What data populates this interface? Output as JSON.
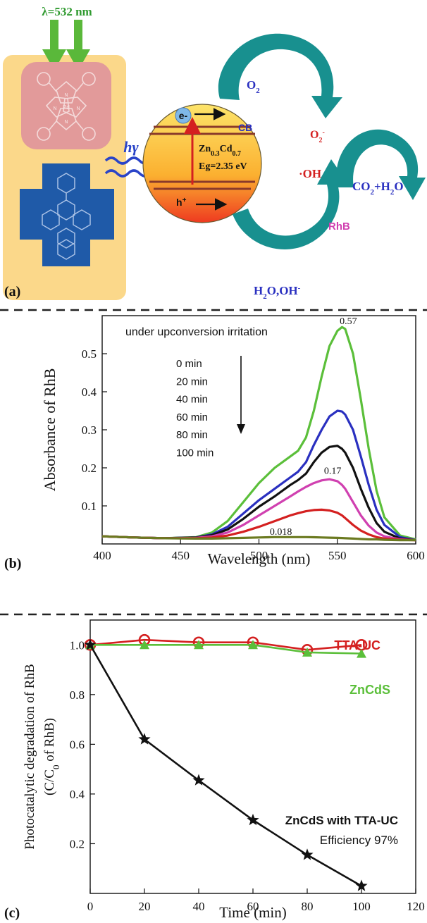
{
  "colors": {
    "panel_bg": "#fbd88a",
    "porphyrin": "#e29a9a",
    "dpa": "#1f5aa8",
    "teal_arrow": "#18908f",
    "green_arrow": "#5ab83a",
    "wave": "#2a44c8",
    "red": "#d42020",
    "blue": "#2a30c0",
    "pink": "#d040b0",
    "green": "#5bbf3a",
    "black": "#111111",
    "olive": "#6b7a20",
    "dpa_green": "#3a7a30"
  },
  "panel_a": {
    "label": "(a)",
    "wavelength_label": "λ=532 nm",
    "porphyrin_metal": "Pd",
    "porphyrin_n": "N",
    "light_label": "hγ",
    "electron": "e-",
    "hole": "h",
    "hole_sup": "+",
    "cb_label": "CB",
    "semiconductor_formula": {
      "zn": "Zn",
      "zn_sub": "0.3",
      "cd": "Cd",
      "cd_sub": "0.7"
    },
    "band_gap": "Eg=2.35 eV",
    "o2": {
      "base": "O",
      "sub": "2"
    },
    "superoxide": {
      "base": "O",
      "sub": "2",
      "sup": "-"
    },
    "hydroxyl": "·OH",
    "products": {
      "co": "CO",
      "sub": "2",
      "rest": "+H",
      "sub2": "2",
      "o": "O"
    },
    "dye": "RhB",
    "water": {
      "h": "H",
      "sub": "2",
      "rest": "O,OH",
      "sup": "-"
    }
  },
  "chart_data": [
    {
      "panel": "b",
      "type": "line",
      "panel_label": "(b)",
      "xlabel": "Wavelength (nm)",
      "ylabel": "Absorbance of RhB",
      "xlim": [
        400,
        600
      ],
      "ylim": [
        0,
        0.6
      ],
      "xticks": [
        400,
        450,
        500,
        550,
        600
      ],
      "yticks": [
        0.1,
        0.2,
        0.3,
        0.4,
        0.5
      ],
      "legend_title": "under upconversion irritation",
      "legend_entries": [
        "0 min",
        "20 min",
        "40 min",
        "60 min",
        "80 min",
        "100 min"
      ],
      "x": [
        400,
        420,
        440,
        460,
        470,
        480,
        490,
        500,
        510,
        520,
        525,
        530,
        535,
        540,
        545,
        550,
        553,
        555,
        560,
        565,
        570,
        575,
        580,
        590,
        600
      ],
      "series": [
        {
          "color": "#5bbf3a",
          "values": [
            0.02,
            0.017,
            0.015,
            0.018,
            0.03,
            0.06,
            0.11,
            0.16,
            0.2,
            0.23,
            0.245,
            0.28,
            0.35,
            0.44,
            0.52,
            0.56,
            0.57,
            0.565,
            0.5,
            0.38,
            0.25,
            0.14,
            0.07,
            0.022,
            0.012
          ]
        },
        {
          "color": "#2a30c0",
          "values": [
            0.02,
            0.017,
            0.015,
            0.017,
            0.025,
            0.045,
            0.08,
            0.115,
            0.145,
            0.175,
            0.19,
            0.215,
            0.26,
            0.3,
            0.335,
            0.35,
            0.348,
            0.34,
            0.3,
            0.23,
            0.155,
            0.09,
            0.05,
            0.018,
            0.01
          ]
        },
        {
          "color": "#111111",
          "values": [
            0.02,
            0.017,
            0.015,
            0.017,
            0.023,
            0.038,
            0.066,
            0.098,
            0.125,
            0.155,
            0.168,
            0.185,
            0.215,
            0.24,
            0.255,
            0.258,
            0.25,
            0.24,
            0.2,
            0.145,
            0.095,
            0.055,
            0.032,
            0.014,
            0.01
          ]
        },
        {
          "color": "#d040b0",
          "values": [
            0.02,
            0.017,
            0.015,
            0.016,
            0.02,
            0.03,
            0.05,
            0.075,
            0.1,
            0.125,
            0.138,
            0.15,
            0.16,
            0.167,
            0.17,
            0.165,
            0.155,
            0.145,
            0.11,
            0.075,
            0.048,
            0.03,
            0.02,
            0.012,
            0.01
          ]
        },
        {
          "color": "#d42020",
          "values": [
            0.02,
            0.017,
            0.015,
            0.015,
            0.017,
            0.022,
            0.032,
            0.045,
            0.06,
            0.075,
            0.081,
            0.086,
            0.089,
            0.09,
            0.088,
            0.082,
            0.075,
            0.068,
            0.05,
            0.035,
            0.025,
            0.018,
            0.014,
            0.011,
            0.01
          ]
        },
        {
          "color": "#6b7a20",
          "values": [
            0.02,
            0.017,
            0.015,
            0.014,
            0.014,
            0.015,
            0.016,
            0.017,
            0.018,
            0.018,
            0.018,
            0.018,
            0.0175,
            0.017,
            0.0165,
            0.016,
            0.0155,
            0.015,
            0.014,
            0.013,
            0.012,
            0.012,
            0.011,
            0.01,
            0.01
          ]
        }
      ],
      "annotations": [
        {
          "text": "0.57",
          "x": 557,
          "y": 0.578
        },
        {
          "text": "0.17",
          "x": 547,
          "y": 0.184
        },
        {
          "text": "0.018",
          "x": 514,
          "y": 0.024
        }
      ]
    },
    {
      "panel": "c",
      "type": "line",
      "panel_label": "(c)",
      "xlabel": "Time (min)",
      "ylabel_line1": "Photocatalytic degradation of RhB",
      "ylabel_line2": {
        "pre": "(C/C",
        "sub": "0",
        "post": " of RhB)"
      },
      "xlim": [
        0,
        120
      ],
      "ylim": [
        0,
        1.1
      ],
      "xticks": [
        0,
        20,
        40,
        60,
        80,
        100,
        120
      ],
      "yticks": [
        0.2,
        0.4,
        0.6,
        0.8,
        1.0
      ],
      "ytick_labels": [
        "0.2",
        "0.4",
        "0.6",
        "0.8",
        "1.0"
      ],
      "x": [
        0,
        20,
        40,
        60,
        80,
        100
      ],
      "series": [
        {
          "name": "TTA-UC",
          "color": "#d42020",
          "marker": "circle",
          "values": [
            1.0,
            1.02,
            1.01,
            1.01,
            0.98,
            1.0
          ]
        },
        {
          "name": "ZnCdS",
          "color": "#5bbf3a",
          "marker": "triangle",
          "values": [
            1.0,
            1.0,
            1.0,
            1.0,
            0.97,
            0.965
          ]
        },
        {
          "name": "ZnCdS with TTA-UC",
          "color": "#111111",
          "marker": "star",
          "values": [
            1.0,
            0.62,
            0.455,
            0.295,
            0.155,
            0.03
          ]
        }
      ],
      "efficiency_label": "Efficiency 97%"
    }
  ]
}
